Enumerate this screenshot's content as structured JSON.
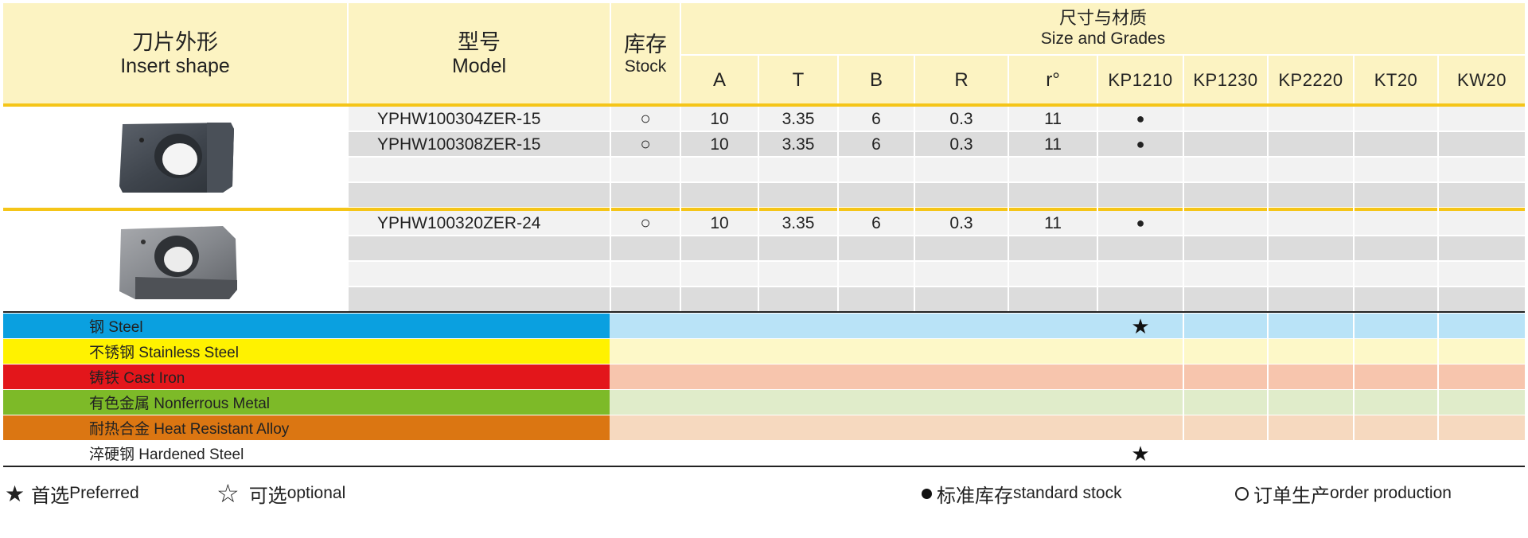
{
  "header": {
    "shape_zh": "刀片外形",
    "shape_en": "Insert shape",
    "model_zh": "型号",
    "model_en": "Model",
    "stock_zh": "库存",
    "stock_en": "Stock",
    "size_zh": "尺寸与材质",
    "size_en": "Size and Grades",
    "dims": [
      "A",
      "T",
      "B",
      "R",
      "r°"
    ],
    "grades": [
      "KP1210",
      "KP1230",
      "KP2220",
      "KT20",
      "KW20"
    ]
  },
  "groups": [
    {
      "image_label": "insert-image-1",
      "rows": [
        {
          "model": "YPHW100304ZER-15",
          "stock": "○",
          "A": "10",
          "T": "3.35",
          "B": "6",
          "R": "0.3",
          "r": "11",
          "KP1210": "●"
        },
        {
          "model": "YPHW100308ZER-15",
          "stock": "○",
          "A": "10",
          "T": "3.35",
          "B": "6",
          "R": "0.3",
          "r": "11",
          "KP1210": "●"
        }
      ]
    },
    {
      "image_label": "insert-image-2",
      "rows": [
        {
          "model": "YPHW100320ZER-24",
          "stock": "○",
          "A": "10",
          "T": "3.35",
          "B": "6",
          "R": "0.3",
          "r": "11",
          "KP1210": "●"
        }
      ]
    }
  ],
  "materials": [
    {
      "label": "钢 Steel",
      "color": "#0aa0e0",
      "tint": "#b9e3f7",
      "mark": "★"
    },
    {
      "label": "不锈钢 Stainless Steel",
      "color": "#fff200",
      "tint": "#fdf8c8",
      "mark": ""
    },
    {
      "label": "铸铁 Cast Iron",
      "color": "#e3161b",
      "tint": "#f7c5ad",
      "mark": ""
    },
    {
      "label": "有色金属 Nonferrous Metal",
      "color": "#7dba28",
      "tint": "#e0ecca",
      "mark": ""
    },
    {
      "label": "耐热合金 Heat Resistant Alloy",
      "color": "#db7612",
      "tint": "#f6d9bf",
      "mark": ""
    },
    {
      "label": "淬硬钢 Hardened Steel",
      "color": "#ffffff",
      "tint": "#ffffff",
      "mark": "★"
    }
  ],
  "legend": {
    "preferred_zh": "首选",
    "preferred_en": "Preferred",
    "optional_zh": "可选",
    "optional_en": "optional",
    "stock_zh": "标准库存",
    "stock_en": "standard stock",
    "order_zh": "订单生产",
    "order_en": "order production",
    "star_filled": "★",
    "star_open": "☆"
  }
}
